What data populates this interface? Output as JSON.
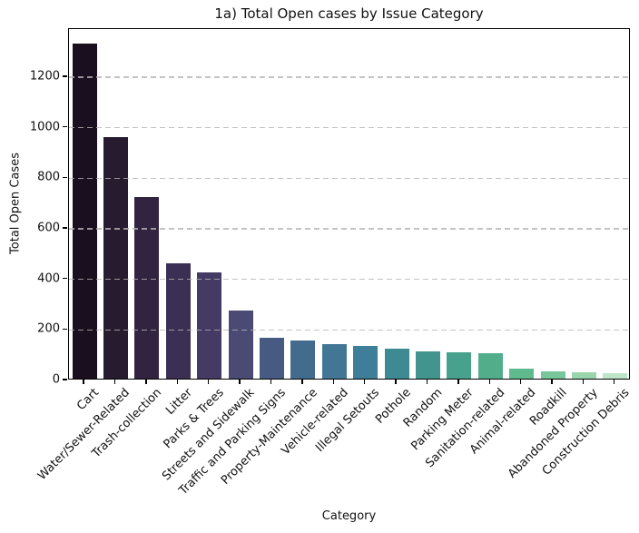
{
  "chart_data": {
    "type": "bar",
    "title": "1a) Total Open cases by Issue Category",
    "xlabel": "Category",
    "ylabel": "Total Open Cases",
    "categories": [
      "Cart",
      "Water/Sewer-Related",
      "Trash-collection",
      "Litter",
      "Parks & Trees",
      "Streets and Sidewalk",
      "Traffic and Parking Signs",
      "Property-Maintenance",
      "Vehicle-related",
      "Illegal Setouts",
      "Pothole",
      "Random",
      "Parking Meter",
      "Sanitation-related",
      "Animal-related",
      "Roadkill",
      "Abandoned Property",
      "Construction Debris"
    ],
    "values": [
      1325,
      955,
      720,
      455,
      420,
      268,
      163,
      152,
      138,
      130,
      120,
      107,
      105,
      100,
      38,
      28,
      25,
      21
    ],
    "bar_colors": [
      "#1a0f1e",
      "#261b2f",
      "#322441",
      "#3b3054",
      "#443a63",
      "#4a4a74",
      "#475a81",
      "#436b8d",
      "#417795",
      "#3e7e98",
      "#3e8a93",
      "#42958e",
      "#48a18c",
      "#52ad8b",
      "#5fba8e",
      "#78c79b",
      "#9ad5ad",
      "#bfe5c8"
    ],
    "yticks": [
      0,
      200,
      400,
      600,
      800,
      1000,
      1200
    ],
    "ylim": [
      0,
      1390
    ],
    "grid": "horizontal-dashed",
    "grid_color": "#b4b4b4",
    "background": "#ffffff",
    "x_tick_rotation": 45,
    "legend": "none"
  }
}
